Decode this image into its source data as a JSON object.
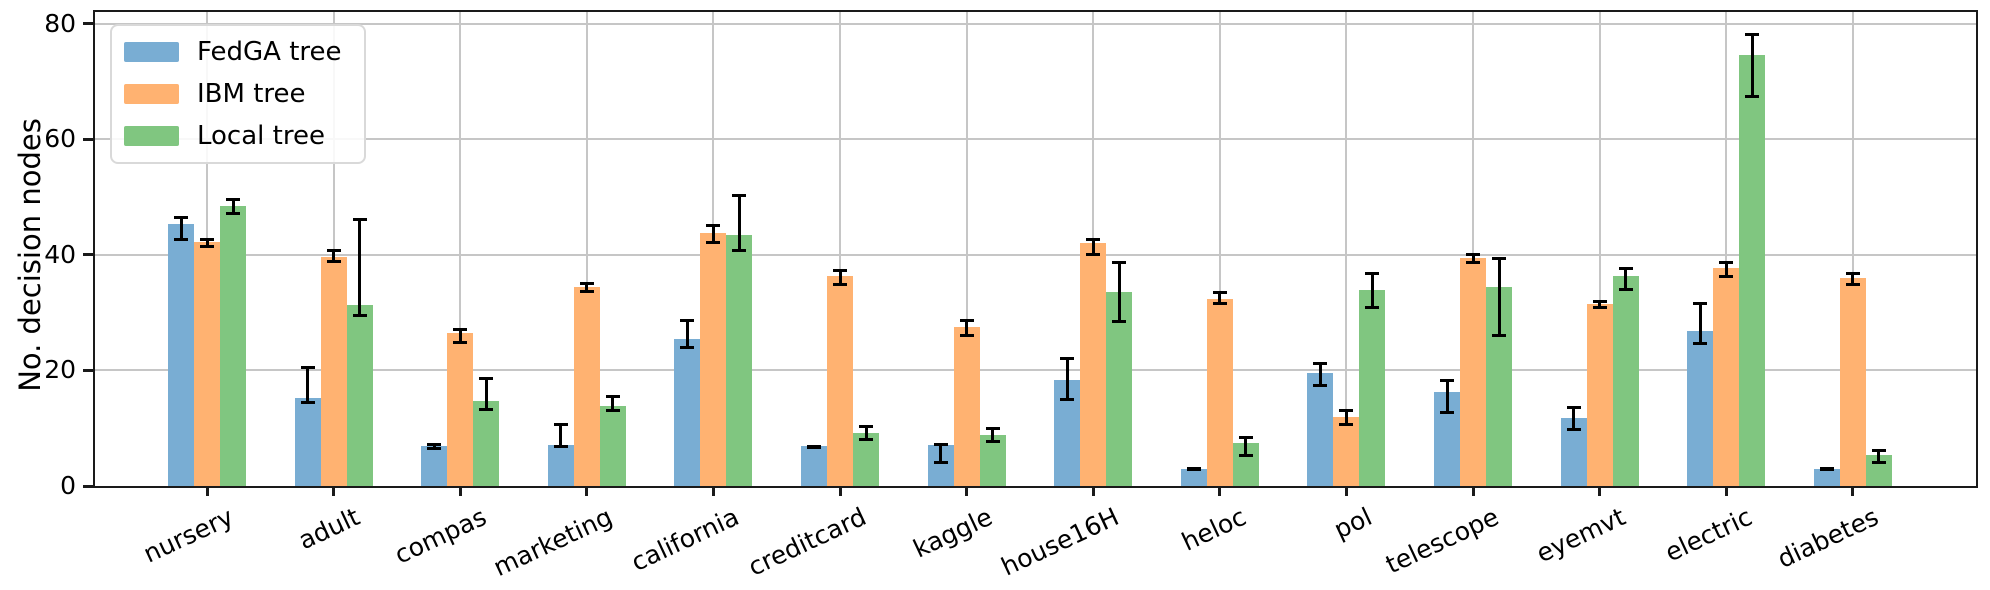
{
  "figure": {
    "background": "#ffffff"
  },
  "chart_data": {
    "type": "bar",
    "title": "",
    "ylabel": "No. decision nodes",
    "xlabel": "",
    "ylim": [
      0,
      82
    ],
    "yticks": [
      0,
      20,
      40,
      60,
      80
    ],
    "grid": true,
    "gridline_color": "#c6c6c6",
    "legend_position": "upper left",
    "error_bar_color": "#000000",
    "categories": [
      "nursery",
      "adult",
      "compas",
      "marketing",
      "california",
      "creditcard",
      "kaggle",
      "house16H",
      "heloc",
      "pol",
      "telescope",
      "eyemvt",
      "electric",
      "diabetes"
    ],
    "series": [
      {
        "name": "FedGA tree",
        "color": "#79ADD3",
        "values": [
          45.3,
          15.2,
          6.9,
          7.1,
          25.4,
          6.9,
          7.1,
          18.4,
          3.0,
          19.6,
          16.3,
          11.8,
          26.9,
          3.0
        ],
        "err_low": [
          42.7,
          14.5,
          6.5,
          6.9,
          24.1,
          6.8,
          4.2,
          15.1,
          2.9,
          17.4,
          12.8,
          9.8,
          24.8,
          2.9
        ],
        "err_high": [
          46.5,
          20.6,
          7.3,
          10.7,
          28.8,
          7.0,
          7.2,
          22.1,
          3.2,
          21.2,
          18.4,
          13.6,
          31.7,
          3.2
        ]
      },
      {
        "name": "IBM tree",
        "color": "#FFB271",
        "values": [
          42.3,
          39.7,
          26.5,
          34.4,
          43.7,
          36.3,
          27.5,
          42.0,
          32.3,
          11.9,
          39.4,
          31.5,
          37.8,
          36.0
        ],
        "err_low": [
          41.6,
          38.9,
          24.9,
          33.7,
          42.2,
          35.0,
          26.2,
          40.2,
          31.6,
          10.8,
          38.7,
          31.0,
          36.4,
          35.0
        ],
        "err_high": [
          42.8,
          40.9,
          27.2,
          35.2,
          45.1,
          37.3,
          28.8,
          42.8,
          33.6,
          13.2,
          40.2,
          32.0,
          38.7,
          36.8
        ]
      },
      {
        "name": "Local tree",
        "color": "#80C680",
        "values": [
          48.4,
          31.3,
          14.7,
          13.9,
          43.5,
          9.2,
          8.9,
          33.6,
          7.4,
          33.9,
          34.5,
          36.3,
          74.6,
          5.4
        ],
        "err_low": [
          47.3,
          29.5,
          13.4,
          13.1,
          40.9,
          8.1,
          7.8,
          28.6,
          5.3,
          30.9,
          26.2,
          34.1,
          67.4,
          4.2
        ],
        "err_high": [
          49.7,
          46.2,
          18.6,
          15.6,
          50.3,
          10.4,
          10.0,
          38.7,
          8.5,
          36.8,
          39.5,
          37.8,
          78.2,
          6.3
        ]
      }
    ]
  }
}
